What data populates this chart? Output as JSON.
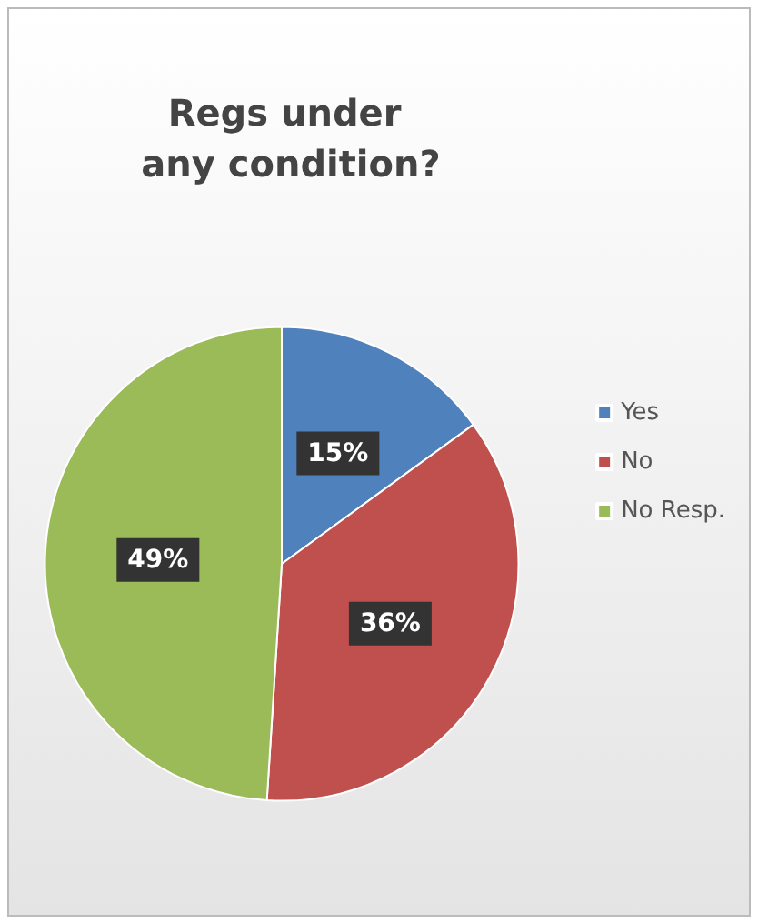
{
  "chart_data": {
    "type": "pie",
    "title": "Regs under any condition?",
    "categories": [
      "Yes",
      "No",
      "No Resp."
    ],
    "values": [
      15,
      36,
      49
    ],
    "colors": [
      "#4f81bd",
      "#c0504d",
      "#9bbb59"
    ],
    "value_labels": [
      "15%",
      "36%",
      "49%"
    ],
    "legend": "right"
  }
}
